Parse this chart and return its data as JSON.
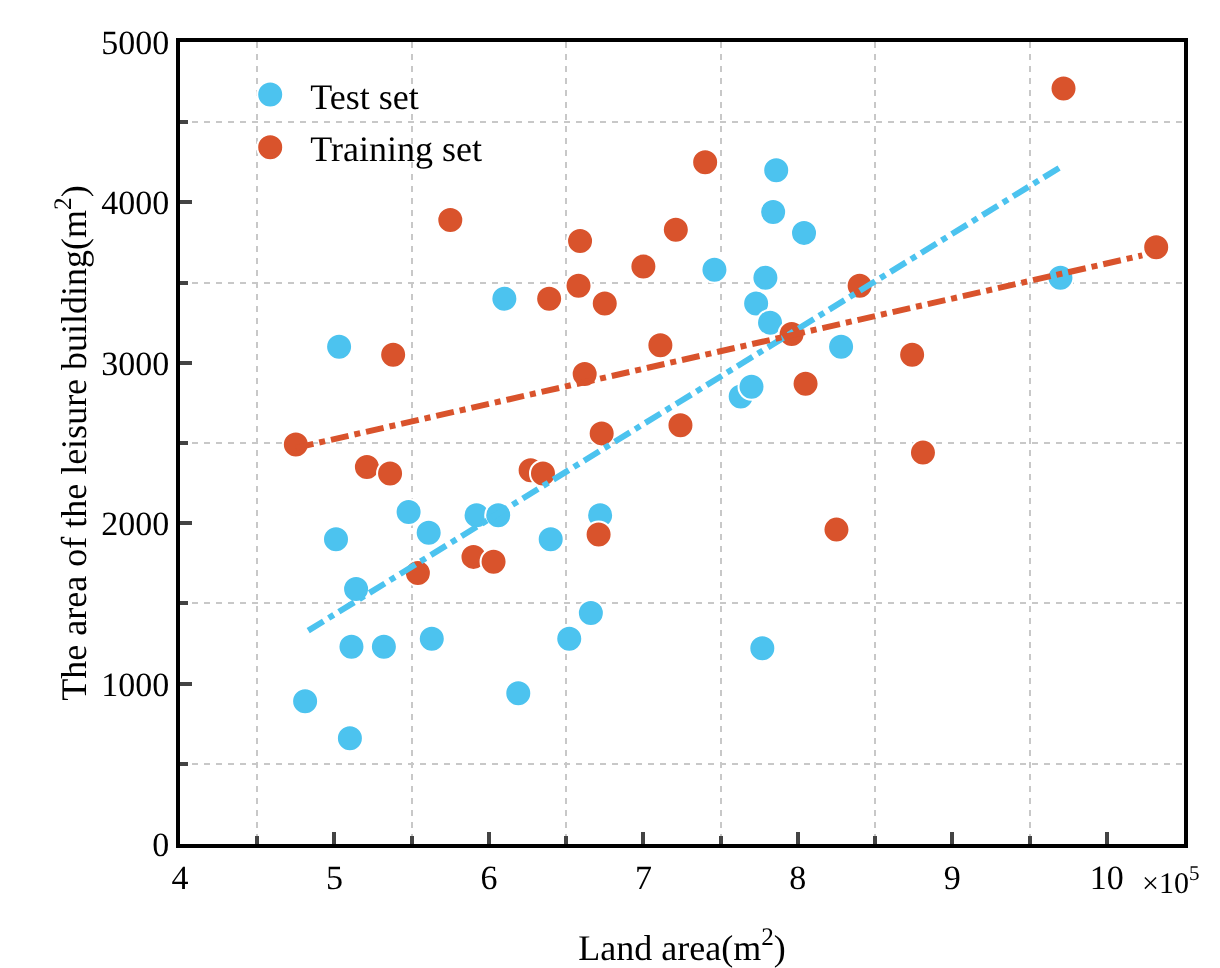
{
  "chart_data": {
    "type": "scatter",
    "xlabel": "Land area(m$^{2}$)",
    "ylabel": "The area of the leisure building(m$^{2}$)",
    "annotations": [
      "×10$^{5}$"
    ],
    "xlim": [
      4,
      10.5
    ],
    "xticks": [
      4,
      5,
      6,
      7,
      8,
      9,
      10
    ],
    "ylim": [
      0,
      5000
    ],
    "yticks": [
      0,
      1000,
      2000,
      3000,
      4000,
      5000
    ],
    "grid": true,
    "legend": "top left",
    "series": [
      {
        "name": "Test set",
        "color": "#4cc3ef",
        "marker": "circle",
        "x": [
          4.81,
          5.1,
          5.01,
          5.03,
          5.14,
          5.11,
          5.32,
          5.48,
          5.61,
          5.63,
          5.92,
          6.06,
          6.1,
          6.19,
          6.4,
          6.52,
          6.66,
          6.72,
          7.46,
          7.86,
          7.84,
          8.04,
          7.79,
          7.73,
          7.82,
          7.63,
          7.7,
          8.28,
          7.77,
          9.7
        ],
        "values": [
          890,
          660,
          1900,
          3100,
          1590,
          1230,
          1230,
          2070,
          1940,
          1280,
          2050,
          2050,
          3400,
          940,
          1900,
          1280,
          1440,
          2050,
          3580,
          4200,
          3940,
          3810,
          3530,
          3370,
          3250,
          2790,
          2850,
          3100,
          1220,
          3530
        ]
      },
      {
        "name": "Training set",
        "color": "#d9532c",
        "marker": "circle",
        "x": [
          4.75,
          5.21,
          5.36,
          5.38,
          5.75,
          5.54,
          5.9,
          6.03,
          6.27,
          6.35,
          6.73,
          6.71,
          6.62,
          6.59,
          6.58,
          6.39,
          6.75,
          7.0,
          7.11,
          7.21,
          7.24,
          7.4,
          7.96,
          8.05,
          8.4,
          8.74,
          8.25,
          8.81,
          9.72,
          10.32
        ],
        "values": [
          2490,
          2350,
          2310,
          3050,
          3890,
          1690,
          1790,
          1760,
          2330,
          2310,
          2560,
          1930,
          2930,
          3760,
          3480,
          3400,
          3370,
          3600,
          3110,
          3830,
          2610,
          4250,
          3180,
          2870,
          3480,
          3050,
          1960,
          2440,
          4710,
          3720
        ]
      },
      {
        "type": "line",
        "color": "#4cc3ef",
        "marker": "none",
        "line_style": "dashdot",
        "x": [
          4.83,
          9.7
        ],
        "values": [
          1330,
          4220
        ]
      },
      {
        "type": "line",
        "color": "#d9532c",
        "marker": "none",
        "line_style": "dashdot",
        "x": [
          4.75,
          10.23
        ],
        "values": [
          2470,
          3670
        ]
      }
    ]
  }
}
